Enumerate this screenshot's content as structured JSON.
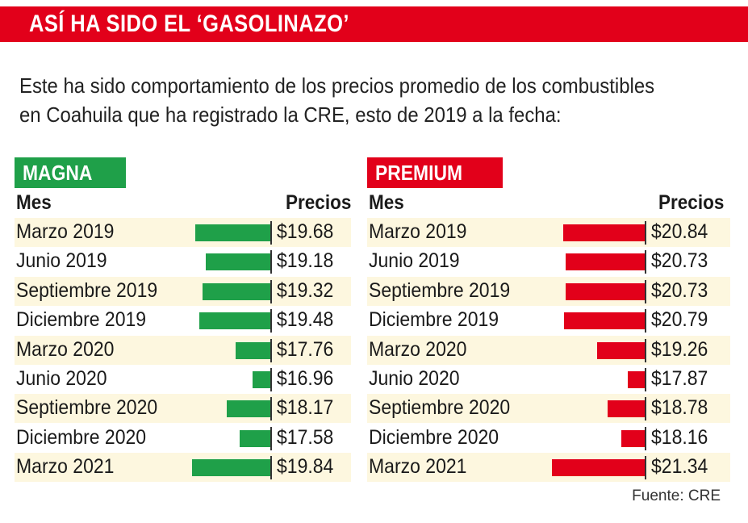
{
  "title": "ASÍ HA SIDO EL ‘GASOLINAZO’",
  "intro": "Este ha sido comportamiento de los precios promedio de los combustibles en Coahuila que ha registrado la CRE, esto de 2019 a la fecha:",
  "source": "Fuente: CRE",
  "colors": {
    "banner": "#e2001a",
    "magna": "#1fa049",
    "premium": "#e2001a",
    "stripe": "#fdf7df"
  },
  "chart_data": [
    {
      "type": "bar",
      "orientation": "horizontal",
      "title": "MAGNA",
      "col_headers": [
        "Mes",
        "Precios"
      ],
      "categories": [
        "Marzo 2019",
        "Junio 2019",
        "Septiembre 2019",
        "Diciembre 2019",
        "Marzo 2020",
        "Junio 2020",
        "Septiembre 2020",
        "Diciembre 2020",
        "Marzo 2021"
      ],
      "values": [
        19.68,
        19.18,
        19.32,
        19.48,
        17.76,
        16.96,
        18.17,
        17.58,
        19.84
      ],
      "labels": [
        "$19.68",
        "$19.18",
        "$19.32",
        "$19.48",
        "$17.76",
        "$16.96",
        "$18.17",
        "$17.58",
        "$19.84"
      ],
      "color": "#1fa049"
    },
    {
      "type": "bar",
      "orientation": "horizontal",
      "title": "PREMIUM",
      "col_headers": [
        "Mes",
        "Precios"
      ],
      "categories": [
        "Marzo 2019",
        "Junio 2019",
        "Septiembre 2019",
        "Diciembre 2019",
        "Marzo 2020",
        "Junio 2020",
        "Septiembre 2020",
        "Diciembre 2020",
        "Marzo 2021"
      ],
      "values": [
        20.84,
        20.73,
        20.73,
        20.79,
        19.26,
        17.87,
        18.78,
        18.16,
        21.34
      ],
      "labels": [
        "$20.84",
        "$20.73",
        "$20.73",
        "$20.79",
        "$19.26",
        "$17.87",
        "$18.78",
        "$18.16",
        "$21.34"
      ],
      "color": "#e2001a"
    }
  ]
}
